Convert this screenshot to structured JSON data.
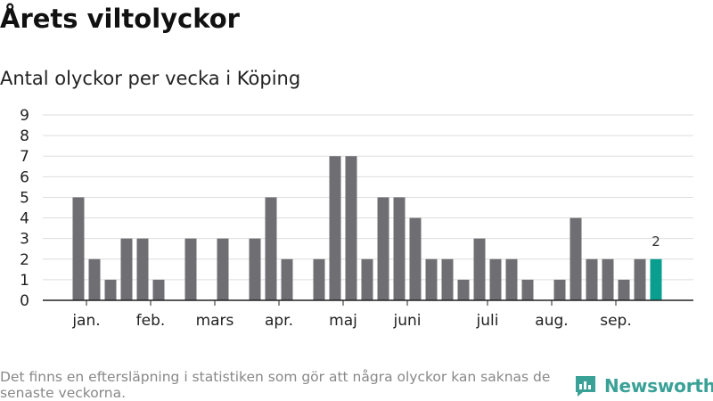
{
  "title": "Årets viltolyckor",
  "subtitle": "Antal olyckor per vecka i Köping",
  "footnote": "Det finns en eftersläpning i statistiken som gör att några olyckor kan saknas de senaste veckorna.",
  "brand": "Newsworthy",
  "colors": {
    "bar": "#6f6e73",
    "highlight": "#0a9e8f",
    "grid": "#dddddd",
    "axis": "#222222",
    "brand": "#3aa197"
  },
  "chart_data": {
    "type": "bar",
    "values": [
      5,
      2,
      1,
      3,
      3,
      1,
      0,
      3,
      0,
      3,
      0,
      3,
      5,
      2,
      0,
      2,
      7,
      7,
      2,
      5,
      5,
      4,
      2,
      2,
      1,
      3,
      2,
      2,
      1,
      0,
      1,
      4,
      2,
      2,
      1,
      2,
      2
    ],
    "highlight_last": true,
    "highlight_label": "2",
    "yticks": [
      "0",
      "1",
      "2",
      "3",
      "4",
      "5",
      "6",
      "7",
      "8",
      "9"
    ],
    "ylim": [
      0,
      9
    ],
    "month_labels": [
      {
        "label": "jan.",
        "at": 0.5
      },
      {
        "label": "feb.",
        "at": 4.5
      },
      {
        "label": "mars",
        "at": 8.5
      },
      {
        "label": "apr.",
        "at": 12.5
      },
      {
        "label": "maj",
        "at": 16.5
      },
      {
        "label": "juni",
        "at": 20.5
      },
      {
        "label": "juli",
        "at": 25.5
      },
      {
        "label": "aug.",
        "at": 29.5
      },
      {
        "label": "sep.",
        "at": 33.5
      }
    ],
    "xlabel": "",
    "ylabel": "",
    "grid": true
  }
}
